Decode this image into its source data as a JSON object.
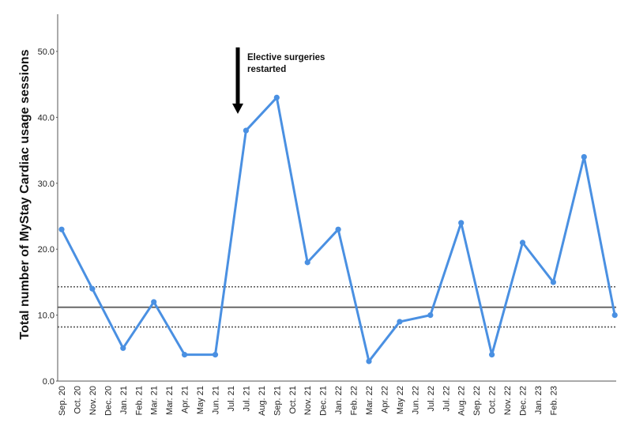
{
  "chart_data": {
    "type": "line",
    "ylabel": "Total number of MyStay Cardiac usage sessions",
    "xlabel": "",
    "ylim": [
      0,
      55
    ],
    "yticks": [
      "0.0",
      "10.0",
      "20.0",
      "30.0",
      "40.0",
      "50.0"
    ],
    "grid": false,
    "categories": [
      "Sep. 20",
      "Oct. 20",
      "Nov. 20",
      "Dec. 20",
      "Jan. 21",
      "Feb. 21",
      "Mar. 21",
      "Mar. 21",
      "Apr. 21",
      "May 21",
      "Jun. 21",
      "Jul. 21",
      "Jul. 21",
      "Aug. 21",
      "Sep. 21",
      "Oct. 21",
      "Nov. 21",
      "Dec. 21",
      "Jan. 22",
      "Feb. 22",
      "Mar. 22",
      "Apr. 22",
      "May 22",
      "Jun. 22",
      "Jul. 22",
      "Jul. 22",
      "Aug. 22",
      "Sep. 22",
      "Oct. 22",
      "Nov. 22",
      "Dec. 22",
      "Jan. 23",
      "Feb. 23"
    ],
    "series": [
      {
        "color": "#4a90e2",
        "points": [
          {
            "x": 0,
            "y": 23
          },
          {
            "x": 2,
            "y": 14
          },
          {
            "x": 4,
            "y": 5
          },
          {
            "x": 6,
            "y": 12
          },
          {
            "x": 8,
            "y": 4
          },
          {
            "x": 10,
            "y": 4
          },
          {
            "x": 12,
            "y": 38
          },
          {
            "x": 14,
            "y": 43
          },
          {
            "x": 16,
            "y": 18
          },
          {
            "x": 18,
            "y": 23
          },
          {
            "x": 20,
            "y": 3
          },
          {
            "x": 22,
            "y": 9
          },
          {
            "x": 24,
            "y": 10
          },
          {
            "x": 26,
            "y": 24
          },
          {
            "x": 28,
            "y": 4
          },
          {
            "x": 30,
            "y": 21
          },
          {
            "x": 32,
            "y": 15
          },
          {
            "x": 34,
            "y": 34
          },
          {
            "x": 36,
            "y": 10
          }
        ]
      }
    ],
    "reference_lines": [
      {
        "y": 11.2,
        "style": "solid",
        "color": "#555555"
      },
      {
        "y": 14.3,
        "style": "dotted",
        "color": "#555555"
      },
      {
        "y": 8.2,
        "style": "dotted",
        "color": "#555555"
      }
    ],
    "annotations": [
      {
        "text_lines": [
          "Elective surgeries",
          "restarted"
        ],
        "x": 12,
        "arrow": "down"
      }
    ]
  }
}
